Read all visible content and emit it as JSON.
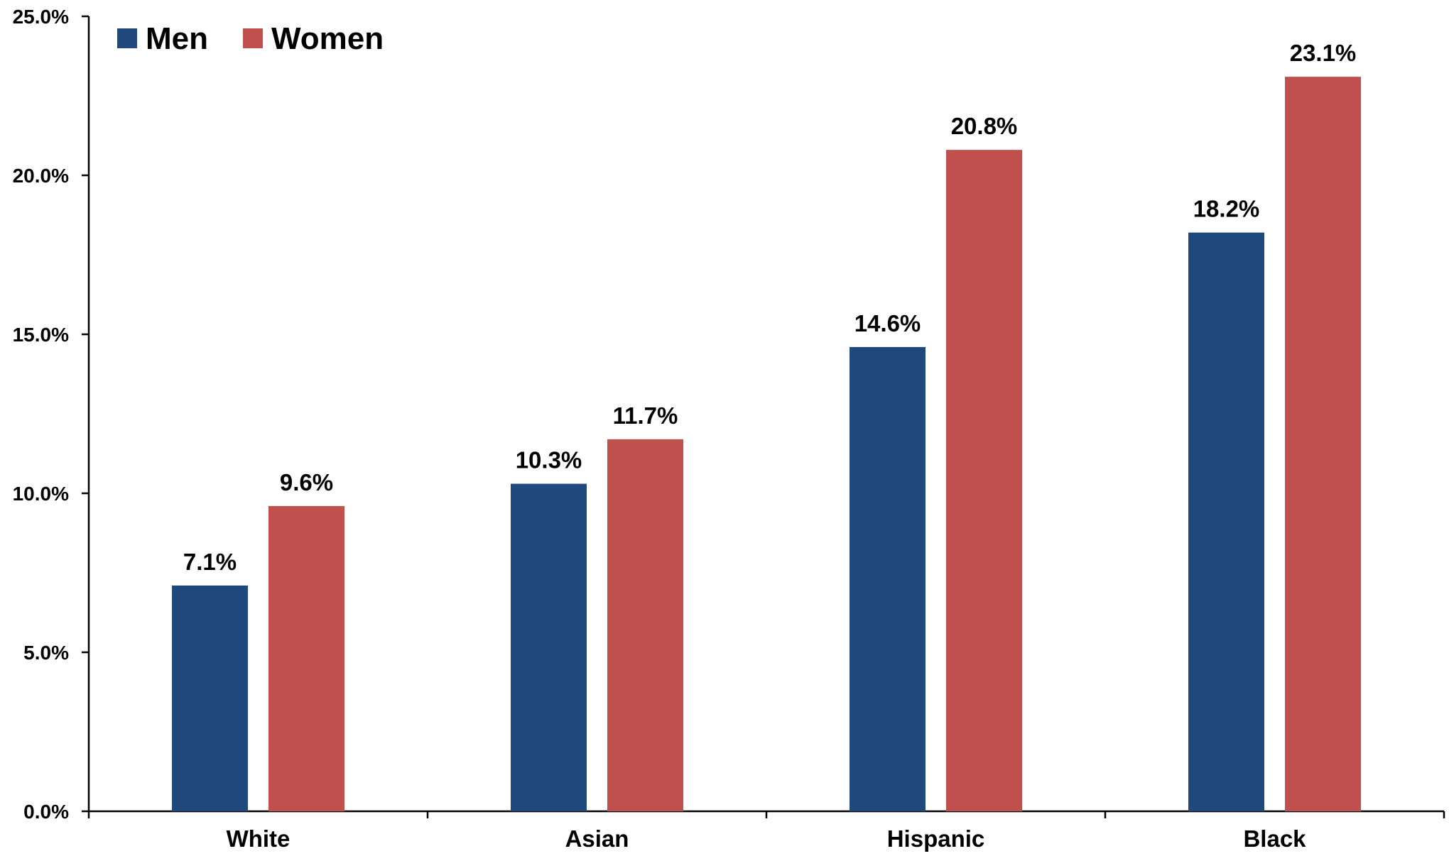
{
  "chart_data": {
    "type": "bar",
    "categories": [
      "White",
      "Asian",
      "Hispanic",
      "Black"
    ],
    "series": [
      {
        "name": "Men",
        "color": "#1F497D",
        "values": [
          7.1,
          10.3,
          14.6,
          18.2
        ],
        "labels": [
          "7.1%",
          "10.3%",
          "14.6%",
          "18.2%"
        ]
      },
      {
        "name": "Women",
        "color": "#C0504D",
        "values": [
          9.6,
          11.7,
          20.8,
          23.1
        ],
        "labels": [
          "9.6%",
          "11.7%",
          "20.8%",
          "23.1%"
        ]
      }
    ],
    "ylim": [
      0,
      25
    ],
    "yticks": [
      0,
      5,
      10,
      15,
      20,
      25
    ],
    "ytick_labels": [
      "0.0%",
      "5.0%",
      "10.0%",
      "15.0%",
      "20.0%",
      "25.0%"
    ],
    "title": "",
    "xlabel": "",
    "ylabel": "",
    "grid": false,
    "legend": "top-left"
  }
}
